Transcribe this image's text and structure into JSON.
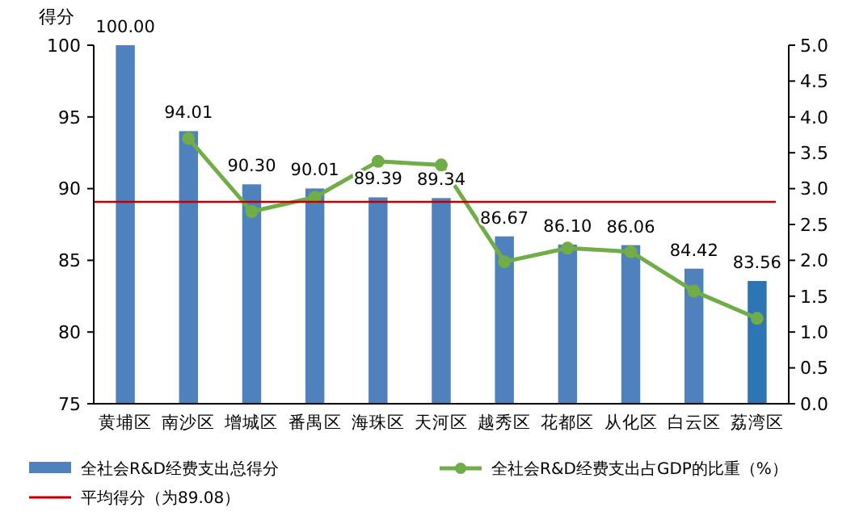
{
  "chart_data": {
    "type": "bar",
    "ylabel": "得分",
    "categories": [
      "黄埔区",
      "南沙区",
      "增城区",
      "番禺区",
      "海珠区",
      "天河区",
      "越秀区",
      "花都区",
      "从化区",
      "白云区",
      "荔湾区"
    ],
    "series": [
      {
        "name": "全社会R&D经费支出总得分",
        "value_labels": [
          "100.00",
          "94.01",
          "90.30",
          "90.01",
          "89.39",
          "89.34",
          "86.67",
          "86.10",
          "86.06",
          "84.42",
          "83.56"
        ],
        "colors": [
          "#4f81bd",
          "#4f81bd",
          "#4f81bd",
          "#4f81bd",
          "#4f81bd",
          "#4f81bd",
          "#4f81bd",
          "#4f81bd",
          "#4f81bd",
          "#4f81bd",
          "#2e75b6"
        ],
        "values": [
          100.0,
          94.01,
          90.3,
          90.01,
          89.39,
          89.34,
          86.67,
          86.1,
          86.06,
          84.42,
          83.56
        ]
      },
      {
        "name": "全社会R&D经费支出占GDP的比重（%）",
        "type": "line",
        "axis": "y2",
        "color": "#70ad47",
        "marker": "circle",
        "values": [
          null,
          3.7,
          2.68,
          2.88,
          3.38,
          3.33,
          1.98,
          2.17,
          2.12,
          1.57,
          1.19
        ]
      }
    ],
    "ylim": [
      75,
      100
    ],
    "yticks": [
      75,
      80,
      85,
      90,
      95,
      100
    ],
    "y2lim": [
      0,
      5
    ],
    "y2ticks": [
      {
        "value": 0,
        "label": "0.0"
      },
      {
        "value": 0.5,
        "label": "0.5"
      },
      {
        "value": 1,
        "label": "1.0"
      },
      {
        "value": 1.5,
        "label": "1.5"
      },
      {
        "value": 2,
        "label": "2.0"
      },
      {
        "value": 2.5,
        "label": "2.5"
      },
      {
        "value": 3,
        "label": "3.0"
      },
      {
        "value": 3.5,
        "label": "3.5"
      },
      {
        "value": 4,
        "label": "4.0"
      },
      {
        "value": 4.5,
        "label": "4.5"
      },
      {
        "value": 5,
        "label": "5.0"
      }
    ],
    "ref_lines": [
      {
        "axis": "y",
        "value": 89.08,
        "label": "平均得分（为89.08）",
        "color": "#c00000"
      }
    ],
    "legend": "bottom",
    "grid": false
  }
}
